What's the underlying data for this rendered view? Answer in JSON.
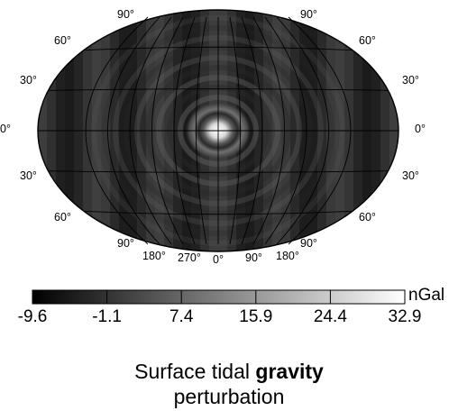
{
  "map": {
    "projection": "Winkel-Tripel-like oval (Hammer style) global map",
    "lat_labels_left": [
      "90°",
      "60°",
      "30°",
      "0°",
      "30°",
      "60°",
      "90°"
    ],
    "lat_labels_right": [
      "90°",
      "60°",
      "30°",
      "0°",
      "30°",
      "60°",
      "90°"
    ],
    "lon_labels_bottom": [
      "180°",
      "270°",
      "0°",
      "90°",
      "180°"
    ],
    "field_center_lon": 0,
    "field_center_lat": 0,
    "colors": {
      "ocean_base": "#3a3a3a",
      "grid": "#000000",
      "hot": "#ffffff"
    }
  },
  "colorbar": {
    "unit": "nGal",
    "ticks": [
      "-9.6",
      "-1.1",
      "7.4",
      "15.9",
      "24.4",
      "32.9"
    ],
    "min": -9.6,
    "max": 32.9
  },
  "caption": {
    "line1_prefix": "Surface tidal ",
    "line1_bold": "gravity",
    "line2": "perturbation"
  }
}
